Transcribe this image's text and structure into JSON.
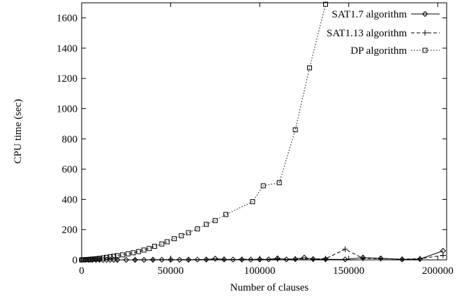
{
  "chart_data": {
    "type": "line",
    "title": "",
    "xlabel": "Number of clauses",
    "ylabel": "CPU time (sec)",
    "xlim": [
      0,
      205000
    ],
    "ylim": [
      0,
      1700
    ],
    "xticks": [
      0,
      50000,
      100000,
      150000,
      200000
    ],
    "yticks": [
      0,
      200,
      400,
      600,
      800,
      1000,
      1200,
      1400,
      1600
    ],
    "grid": false,
    "legend_position": "top-right",
    "series": [
      {
        "name": "SAT1.7 algorithm",
        "style": "solid",
        "marker": "diamond",
        "x": [
          0,
          2000,
          4000,
          6000,
          8000,
          10000,
          12000,
          14000,
          16000,
          18000,
          20000,
          25000,
          30000,
          35000,
          40000,
          45000,
          50000,
          55000,
          60000,
          65000,
          70000,
          75000,
          80000,
          85000,
          90000,
          95000,
          100000,
          105000,
          110000,
          115000,
          120000,
          125000,
          130000,
          137000,
          148000,
          158000,
          168000,
          180000,
          190000,
          203000
        ],
        "y": [
          0,
          0,
          0,
          0,
          0,
          0,
          0,
          0,
          0,
          0,
          0,
          0,
          0,
          0,
          1,
          1,
          1,
          1,
          1,
          2,
          2,
          8,
          3,
          2,
          2,
          2,
          3,
          3,
          10,
          3,
          5,
          15,
          5,
          4,
          3,
          15,
          10,
          3,
          5,
          60
        ]
      },
      {
        "name": "SAT1.13 algorithm",
        "style": "dashed",
        "marker": "plus",
        "x": [
          0,
          5000,
          10000,
          20000,
          30000,
          40000,
          50000,
          60000,
          70000,
          80000,
          90000,
          100000,
          110000,
          120000,
          130000,
          137000,
          148000,
          158000,
          168000,
          180000,
          190000,
          203000
        ],
        "y": [
          0,
          0,
          0,
          0,
          1,
          1,
          1,
          2,
          3,
          3,
          4,
          4,
          5,
          6,
          6,
          8,
          70,
          10,
          8,
          5,
          8,
          30
        ]
      },
      {
        "name": "DP algorithm",
        "style": "dotted",
        "marker": "square",
        "x": [
          0,
          1000,
          2000,
          3000,
          4000,
          5000,
          6000,
          7000,
          8000,
          9000,
          10000,
          12000,
          14000,
          16000,
          18000,
          20000,
          23000,
          26000,
          29000,
          32000,
          35000,
          38000,
          41000,
          45000,
          48000,
          52000,
          56000,
          60000,
          65000,
          70000,
          75000,
          81000,
          96000,
          102000,
          111000,
          120000,
          128000,
          137000
        ],
        "y": [
          0,
          1,
          1,
          2,
          3,
          4,
          5,
          6,
          7,
          8,
          10,
          13,
          17,
          20,
          24,
          28,
          33,
          40,
          47,
          55,
          65,
          75,
          90,
          105,
          120,
          140,
          160,
          180,
          205,
          235,
          260,
          300,
          385,
          490,
          510,
          860,
          1270,
          1690
        ]
      }
    ]
  }
}
